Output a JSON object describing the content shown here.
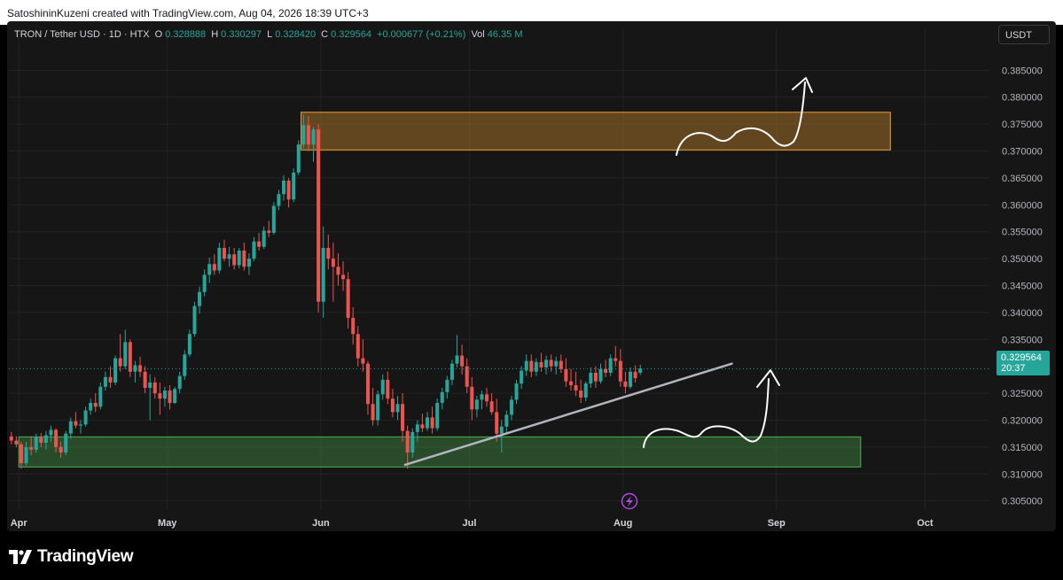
{
  "header": {
    "credit": "SatoshininKuzeni created with TradingView.com, Aug 04, 2026 18:39 UTC+3"
  },
  "legend": {
    "symbol": "TRON / Tether USD · 1D · HTX",
    "open_label": "O",
    "open": "0.328888",
    "high_label": "H",
    "high": "0.330297",
    "low_label": "L",
    "low": "0.328420",
    "close_label": "C",
    "close": "0.329564",
    "change": "+0.000677 (+0.21%)",
    "vol_label": "Vol",
    "vol": "46.35 M"
  },
  "currency_button": "USDT",
  "last_price_badge": {
    "price": "0.329564",
    "countdown": "20:37"
  },
  "brand": {
    "name": "TradingView",
    "logo_icon": "tradingview-logo-icon"
  },
  "colors": {
    "up": "#26a69a",
    "down": "#ef5350",
    "supply_zone": "#f0a030",
    "demand_zone": "#4caf50",
    "trendline": "#b2b5be",
    "badge": "#26a69a"
  },
  "chart_data": {
    "type": "candlestick",
    "series_name": "TRON / Tether USD",
    "timeframe": "1D",
    "y_ticks": [
      "0.385000",
      "0.380000",
      "0.375000",
      "0.370000",
      "0.365000",
      "0.360000",
      "0.355000",
      "0.350000",
      "0.345000",
      "0.340000",
      "0.335000",
      "0.325000",
      "0.320000",
      "0.315000",
      "0.310000",
      "0.305000"
    ],
    "x_ticks": [
      {
        "label": "Apr",
        "date": "2026-04-01"
      },
      {
        "label": "May",
        "date": "2026-05-01"
      },
      {
        "label": "Jun",
        "date": "2026-06-01"
      },
      {
        "label": "Jul",
        "date": "2026-07-01"
      },
      {
        "label": "Aug",
        "date": "2026-08-01"
      },
      {
        "label": "Sep",
        "date": "2026-09-01"
      },
      {
        "label": "Oct",
        "date": "2026-10-01"
      }
    ],
    "ylim": [
      0.3033,
      0.3895
    ],
    "xlim": [
      "2026-03-30",
      "2026-10-14"
    ],
    "last_price": 0.329564,
    "grid": true,
    "candles": [
      [
        "2026-03-30",
        0.317,
        0.3178,
        0.3155,
        0.3162
      ],
      [
        "2026-03-31",
        0.3162,
        0.317,
        0.315,
        0.3155
      ],
      [
        "2026-04-01",
        0.3155,
        0.316,
        0.311,
        0.312
      ],
      [
        "2026-04-02",
        0.312,
        0.316,
        0.3115,
        0.315
      ],
      [
        "2026-04-03",
        0.315,
        0.317,
        0.3135,
        0.3145
      ],
      [
        "2026-04-04",
        0.3145,
        0.3175,
        0.314,
        0.3168
      ],
      [
        "2026-04-05",
        0.3168,
        0.3176,
        0.315,
        0.3158
      ],
      [
        "2026-04-06",
        0.3158,
        0.318,
        0.3145,
        0.3172
      ],
      [
        "2026-04-07",
        0.3172,
        0.319,
        0.316,
        0.3182
      ],
      [
        "2026-04-08",
        0.3182,
        0.3185,
        0.314,
        0.315
      ],
      [
        "2026-04-09",
        0.315,
        0.316,
        0.313,
        0.314
      ],
      [
        "2026-04-10",
        0.314,
        0.318,
        0.3135,
        0.3175
      ],
      [
        "2026-04-11",
        0.3175,
        0.3205,
        0.3165,
        0.3198
      ],
      [
        "2026-04-12",
        0.3198,
        0.3215,
        0.3185,
        0.319
      ],
      [
        "2026-04-13",
        0.319,
        0.32,
        0.3175,
        0.3192
      ],
      [
        "2026-04-14",
        0.3192,
        0.3225,
        0.3188,
        0.3218
      ],
      [
        "2026-04-15",
        0.3218,
        0.324,
        0.321,
        0.3232
      ],
      [
        "2026-04-16",
        0.3232,
        0.325,
        0.3215,
        0.3225
      ],
      [
        "2026-04-17",
        0.3225,
        0.327,
        0.322,
        0.3262
      ],
      [
        "2026-04-18",
        0.3262,
        0.329,
        0.3255,
        0.328
      ],
      [
        "2026-04-19",
        0.328,
        0.33,
        0.326,
        0.327
      ],
      [
        "2026-04-20",
        0.327,
        0.332,
        0.3265,
        0.3315
      ],
      [
        "2026-04-21",
        0.3315,
        0.336,
        0.329,
        0.33
      ],
      [
        "2026-04-22",
        0.33,
        0.3368,
        0.3295,
        0.3345
      ],
      [
        "2026-04-23",
        0.3345,
        0.335,
        0.328,
        0.329
      ],
      [
        "2026-04-24",
        0.329,
        0.331,
        0.327,
        0.3302
      ],
      [
        "2026-04-25",
        0.3302,
        0.3318,
        0.328,
        0.329
      ],
      [
        "2026-04-26",
        0.329,
        0.33,
        0.325,
        0.326
      ],
      [
        "2026-04-27",
        0.326,
        0.3285,
        0.32,
        0.327
      ],
      [
        "2026-04-28",
        0.327,
        0.328,
        0.324,
        0.325
      ],
      [
        "2026-04-29",
        0.325,
        0.327,
        0.321,
        0.324
      ],
      [
        "2026-04-30",
        0.324,
        0.3262,
        0.3225,
        0.3255
      ],
      [
        "2026-05-01",
        0.3255,
        0.3265,
        0.322,
        0.3232
      ],
      [
        "2026-05-02",
        0.3232,
        0.3262,
        0.323,
        0.3258
      ],
      [
        "2026-05-03",
        0.3258,
        0.329,
        0.325,
        0.3282
      ],
      [
        "2026-05-04",
        0.3282,
        0.333,
        0.3275,
        0.3322
      ],
      [
        "2026-05-05",
        0.3322,
        0.3368,
        0.3318,
        0.336
      ],
      [
        "2026-05-06",
        0.336,
        0.342,
        0.3355,
        0.3412
      ],
      [
        "2026-05-07",
        0.3412,
        0.3448,
        0.3398,
        0.3438
      ],
      [
        "2026-05-08",
        0.3438,
        0.348,
        0.343,
        0.347
      ],
      [
        "2026-05-09",
        0.347,
        0.3502,
        0.3455,
        0.349
      ],
      [
        "2026-05-10",
        0.349,
        0.3508,
        0.347,
        0.3478
      ],
      [
        "2026-05-11",
        0.3478,
        0.353,
        0.3472,
        0.352
      ],
      [
        "2026-05-12",
        0.352,
        0.3535,
        0.3495,
        0.35
      ],
      [
        "2026-05-13",
        0.35,
        0.3522,
        0.3485,
        0.3508
      ],
      [
        "2026-05-14",
        0.3508,
        0.352,
        0.348,
        0.3488
      ],
      [
        "2026-05-15",
        0.3488,
        0.352,
        0.3482,
        0.3515
      ],
      [
        "2026-05-16",
        0.3515,
        0.353,
        0.3478,
        0.3485
      ],
      [
        "2026-05-17",
        0.3485,
        0.351,
        0.347,
        0.35
      ],
      [
        "2026-05-18",
        0.35,
        0.354,
        0.3495,
        0.3532
      ],
      [
        "2026-05-19",
        0.3532,
        0.3548,
        0.3515,
        0.3522
      ],
      [
        "2026-05-20",
        0.3522,
        0.356,
        0.3518,
        0.3552
      ],
      [
        "2026-05-21",
        0.3552,
        0.357,
        0.354,
        0.3548
      ],
      [
        "2026-05-22",
        0.3548,
        0.3605,
        0.3545,
        0.3598
      ],
      [
        "2026-05-23",
        0.3598,
        0.3628,
        0.359,
        0.362
      ],
      [
        "2026-05-24",
        0.362,
        0.3655,
        0.3608,
        0.3645
      ],
      [
        "2026-05-25",
        0.3645,
        0.365,
        0.3595,
        0.361
      ],
      [
        "2026-05-26",
        0.361,
        0.3668,
        0.3605,
        0.366
      ],
      [
        "2026-05-27",
        0.366,
        0.372,
        0.3655,
        0.3712
      ],
      [
        "2026-05-28",
        0.3712,
        0.3768,
        0.3705,
        0.3748
      ],
      [
        "2026-05-29",
        0.3748,
        0.3765,
        0.37,
        0.3712
      ],
      [
        "2026-05-30",
        0.3712,
        0.3745,
        0.368,
        0.374
      ],
      [
        "2026-05-31",
        0.374,
        0.375,
        0.34,
        0.342
      ],
      [
        "2026-06-01",
        0.342,
        0.356,
        0.339,
        0.352
      ],
      [
        "2026-06-02",
        0.352,
        0.3545,
        0.348,
        0.35
      ],
      [
        "2026-06-03",
        0.35,
        0.353,
        0.342,
        0.3485
      ],
      [
        "2026-06-04",
        0.3485,
        0.351,
        0.345,
        0.347
      ],
      [
        "2026-06-05",
        0.347,
        0.3495,
        0.344,
        0.3462
      ],
      [
        "2026-06-06",
        0.3462,
        0.3475,
        0.337,
        0.339
      ],
      [
        "2026-06-07",
        0.339,
        0.341,
        0.334,
        0.336
      ],
      [
        "2026-06-08",
        0.336,
        0.3375,
        0.33,
        0.3315
      ],
      [
        "2026-06-09",
        0.3315,
        0.335,
        0.329,
        0.3305
      ],
      [
        "2026-06-10",
        0.3305,
        0.331,
        0.321,
        0.323
      ],
      [
        "2026-06-11",
        0.323,
        0.326,
        0.319,
        0.32
      ],
      [
        "2026-06-12",
        0.32,
        0.3255,
        0.319,
        0.3248
      ],
      [
        "2026-06-13",
        0.3248,
        0.3285,
        0.3238,
        0.3275
      ],
      [
        "2026-06-14",
        0.3275,
        0.329,
        0.323,
        0.324
      ],
      [
        "2026-06-15",
        0.324,
        0.3258,
        0.3205,
        0.3215
      ],
      [
        "2026-06-16",
        0.3215,
        0.3245,
        0.32,
        0.323
      ],
      [
        "2026-06-17",
        0.323,
        0.325,
        0.316,
        0.318
      ],
      [
        "2026-06-18",
        0.318,
        0.319,
        0.311,
        0.314
      ],
      [
        "2026-06-19",
        0.314,
        0.3185,
        0.313,
        0.3178
      ],
      [
        "2026-06-20",
        0.3178,
        0.32,
        0.316,
        0.3192
      ],
      [
        "2026-06-21",
        0.3192,
        0.3212,
        0.3178,
        0.3185
      ],
      [
        "2026-06-22",
        0.3185,
        0.3215,
        0.318,
        0.3205
      ],
      [
        "2026-06-23",
        0.3205,
        0.3225,
        0.3175,
        0.3185
      ],
      [
        "2026-06-24",
        0.3185,
        0.324,
        0.318,
        0.3232
      ],
      [
        "2026-06-25",
        0.3232,
        0.326,
        0.322,
        0.3252
      ],
      [
        "2026-06-26",
        0.3252,
        0.3282,
        0.324,
        0.3275
      ],
      [
        "2026-06-27",
        0.3275,
        0.3312,
        0.3265,
        0.3305
      ],
      [
        "2026-06-28",
        0.3305,
        0.3358,
        0.3298,
        0.332
      ],
      [
        "2026-06-29",
        0.332,
        0.334,
        0.3285,
        0.33
      ],
      [
        "2026-06-30",
        0.33,
        0.3315,
        0.325,
        0.3262
      ],
      [
        "2026-07-01",
        0.3262,
        0.328,
        0.32,
        0.322
      ],
      [
        "2026-07-02",
        0.322,
        0.3245,
        0.3205,
        0.3238
      ],
      [
        "2026-07-03",
        0.3238,
        0.3255,
        0.322,
        0.3248
      ],
      [
        "2026-07-04",
        0.3248,
        0.326,
        0.3225,
        0.3235
      ],
      [
        "2026-07-05",
        0.3235,
        0.325,
        0.321,
        0.3215
      ],
      [
        "2026-07-06",
        0.3215,
        0.324,
        0.316,
        0.3175
      ],
      [
        "2026-07-07",
        0.3175,
        0.32,
        0.314,
        0.3188
      ],
      [
        "2026-07-08",
        0.3188,
        0.3218,
        0.3175,
        0.321
      ],
      [
        "2026-07-09",
        0.321,
        0.3245,
        0.32,
        0.3238
      ],
      [
        "2026-07-10",
        0.3238,
        0.3275,
        0.323,
        0.3268
      ],
      [
        "2026-07-11",
        0.3268,
        0.33,
        0.3258,
        0.3292
      ],
      [
        "2026-07-12",
        0.3292,
        0.3322,
        0.3282,
        0.331
      ],
      [
        "2026-07-13",
        0.331,
        0.3322,
        0.328,
        0.329
      ],
      [
        "2026-07-14",
        0.329,
        0.3315,
        0.3282,
        0.3308
      ],
      [
        "2026-07-15",
        0.3308,
        0.3325,
        0.329,
        0.3298
      ],
      [
        "2026-07-16",
        0.3298,
        0.332,
        0.3285,
        0.3312
      ],
      [
        "2026-07-17",
        0.3312,
        0.3322,
        0.329,
        0.33
      ],
      [
        "2026-07-18",
        0.33,
        0.3318,
        0.3285,
        0.331
      ],
      [
        "2026-07-19",
        0.331,
        0.3322,
        0.3288,
        0.3295
      ],
      [
        "2026-07-20",
        0.3295,
        0.3315,
        0.3262,
        0.3272
      ],
      [
        "2026-07-21",
        0.3272,
        0.3295,
        0.3255,
        0.3265
      ],
      [
        "2026-07-22",
        0.3265,
        0.329,
        0.3245,
        0.3255
      ],
      [
        "2026-07-23",
        0.3255,
        0.3275,
        0.3232,
        0.3242
      ],
      [
        "2026-07-24",
        0.3242,
        0.3272,
        0.3235,
        0.3268
      ],
      [
        "2026-07-25",
        0.3268,
        0.3298,
        0.326,
        0.3288
      ],
      [
        "2026-07-26",
        0.3288,
        0.33,
        0.326,
        0.3272
      ],
      [
        "2026-07-27",
        0.3272,
        0.3305,
        0.3268,
        0.3295
      ],
      [
        "2026-07-28",
        0.3295,
        0.3312,
        0.328,
        0.3288
      ],
      [
        "2026-07-29",
        0.3288,
        0.3322,
        0.3282,
        0.3315
      ],
      [
        "2026-07-30",
        0.3315,
        0.3338,
        0.33,
        0.331
      ],
      [
        "2026-07-31",
        0.331,
        0.3332,
        0.3262,
        0.3272
      ],
      [
        "2026-08-01",
        0.3272,
        0.329,
        0.325,
        0.3262
      ],
      [
        "2026-08-02",
        0.3262,
        0.3298,
        0.3258,
        0.329
      ],
      [
        "2026-08-03",
        0.329,
        0.3302,
        0.327,
        0.3278
      ],
      [
        "2026-08-04",
        0.3288,
        0.3303,
        0.3284,
        0.3296
      ]
    ],
    "annotations": [
      {
        "type": "rectangle",
        "label": "supply-zone",
        "color": "#f0a030",
        "x0": "2026-05-28",
        "x1": "2026-09-24",
        "y0": 0.3702,
        "y1": 0.3772
      },
      {
        "type": "rectangle",
        "label": "demand-zone",
        "color": "#4caf50",
        "x0": "2026-04-01",
        "x1": "2026-09-18",
        "y0": 0.3113,
        "y1": 0.3169
      },
      {
        "type": "trendline",
        "color": "#b2b5be",
        "x0": "2026-06-18",
        "y0": 0.3117,
        "x1": "2026-08-23",
        "y1": 0.3305
      }
    ]
  }
}
